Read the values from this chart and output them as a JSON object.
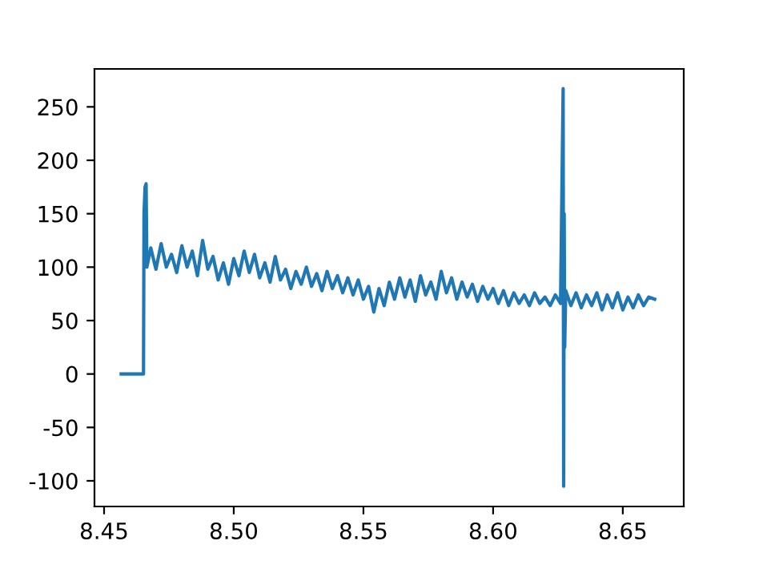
{
  "chart_data": {
    "type": "line",
    "xlim": [
      8.4463,
      8.6735
    ],
    "ylim": [
      -124,
      285.5
    ],
    "xticks": [
      {
        "value": 8.45,
        "label": "8.45"
      },
      {
        "value": 8.5,
        "label": "8.50"
      },
      {
        "value": 8.55,
        "label": "8.55"
      },
      {
        "value": 8.6,
        "label": "8.60"
      },
      {
        "value": 8.65,
        "label": "8.65"
      }
    ],
    "yticks": [
      -100,
      -50,
      0,
      50,
      100,
      150,
      200,
      250
    ],
    "grid": false,
    "marker": "none",
    "line_style": "solid",
    "series": [
      {
        "color": "#1f77b4",
        "x": [
          8.4566,
          8.4652,
          8.4654,
          8.4658,
          8.4662,
          8.4665,
          8.468,
          8.47,
          8.472,
          8.474,
          8.476,
          8.478,
          8.48,
          8.482,
          8.484,
          8.486,
          8.488,
          8.49,
          8.492,
          8.494,
          8.496,
          8.498,
          8.5,
          8.502,
          8.504,
          8.506,
          8.508,
          8.51,
          8.512,
          8.514,
          8.516,
          8.518,
          8.52,
          8.522,
          8.524,
          8.526,
          8.528,
          8.53,
          8.532,
          8.534,
          8.536,
          8.538,
          8.54,
          8.542,
          8.544,
          8.546,
          8.548,
          8.55,
          8.552,
          8.554,
          8.556,
          8.558,
          8.56,
          8.562,
          8.564,
          8.566,
          8.568,
          8.57,
          8.572,
          8.574,
          8.576,
          8.578,
          8.58,
          8.582,
          8.584,
          8.586,
          8.588,
          8.59,
          8.592,
          8.594,
          8.596,
          8.598,
          8.6,
          8.602,
          8.604,
          8.606,
          8.608,
          8.61,
          8.612,
          8.614,
          8.616,
          8.618,
          8.62,
          8.622,
          8.624,
          8.626,
          8.627,
          8.6272,
          8.6274,
          8.6276,
          8.628,
          8.63,
          8.632,
          8.634,
          8.636,
          8.638,
          8.64,
          8.642,
          8.644,
          8.646,
          8.648,
          8.65,
          8.652,
          8.654,
          8.656,
          8.658,
          8.66,
          8.6623
        ],
        "values": [
          0,
          0,
          150,
          175,
          178,
          100,
          118,
          98,
          122,
          100,
          112,
          95,
          120,
          100,
          115,
          92,
          125,
          98,
          110,
          88,
          104,
          84,
          108,
          92,
          115,
          95,
          112,
          90,
          104,
          86,
          110,
          88,
          98,
          80,
          96,
          84,
          100,
          82,
          94,
          78,
          96,
          80,
          92,
          76,
          90,
          74,
          88,
          70,
          82,
          58,
          80,
          64,
          86,
          70,
          90,
          72,
          88,
          68,
          92,
          74,
          86,
          70,
          96,
          76,
          90,
          70,
          86,
          72,
          84,
          68,
          82,
          70,
          80,
          66,
          78,
          64,
          76,
          66,
          74,
          64,
          76,
          66,
          72,
          64,
          74,
          66,
          267,
          -105,
          150,
          25,
          78,
          64,
          76,
          62,
          74,
          64,
          76,
          60,
          74,
          62,
          76,
          60,
          72,
          62,
          74,
          64,
          72,
          70
        ]
      }
    ]
  }
}
